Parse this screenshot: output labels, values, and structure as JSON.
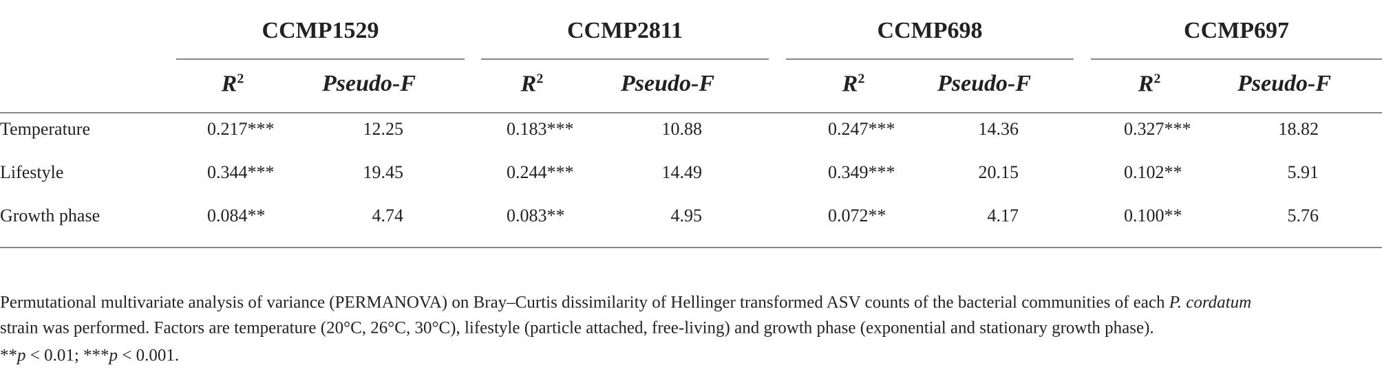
{
  "table": {
    "groups": [
      "CCMP1529",
      "CCMP2811",
      "CCMP698",
      "CCMP697"
    ],
    "subheaders": [
      {
        "symbol": "R",
        "sup": "2"
      },
      "Pseudo-F"
    ],
    "rows": [
      {
        "label": "Temperature",
        "cells": [
          "0.217***",
          "12.25",
          "0.183***",
          "10.88",
          "0.247***",
          "14.36",
          "0.327***",
          "18.82"
        ]
      },
      {
        "label": "Lifestyle",
        "cells": [
          "0.344***",
          "19.45",
          "0.244***",
          "14.49",
          "0.349***",
          "20.15",
          "0.102**",
          "5.91"
        ]
      },
      {
        "label": "Growth phase",
        "cells": [
          "0.084**",
          "4.74",
          "0.083**",
          "4.95",
          "0.072**",
          "4.17",
          "0.100**",
          "5.76"
        ]
      }
    ]
  },
  "footnote": {
    "lines": [
      [
        "Permutational multivariate analysis of variance (PERMANOVA) on Bray–Curtis dissimilarity of Hellinger transformed ASV counts of the bacterial communities of each ",
        "P. cordatum"
      ],
      [
        "strain was performed. Factors are temperature (20°C, 26°C, 30°C), lifestyle (particle attached, free-living) and growth phase (exponential and stationary growth phase)."
      ],
      [
        "**",
        "p",
        " < 0.01; ***",
        "p",
        " < 0.001."
      ]
    ]
  }
}
